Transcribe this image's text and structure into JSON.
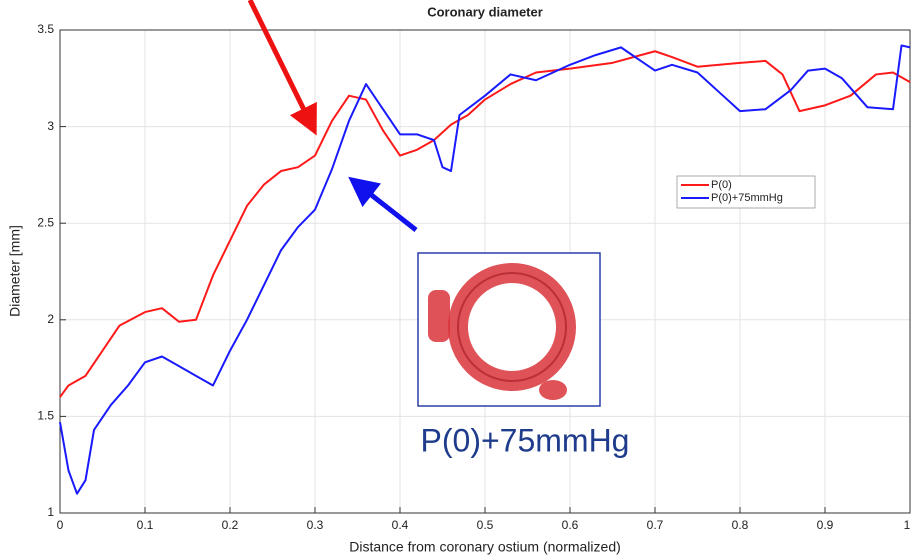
{
  "chart_data": {
    "type": "line",
    "title": "Coronary diameter",
    "x_label": "Distance from coronary ostium (normalized)",
    "y_label": "Diameter [mm]",
    "annotation": "P(0)+75mmHg",
    "xlim": [
      0,
      1
    ],
    "xticks": [
      0,
      0.1,
      0.2,
      0.3,
      0.4,
      0.5,
      0.6,
      0.7,
      0.8,
      0.9,
      1
    ],
    "ylim": [
      1,
      3.5
    ],
    "yticks": [
      1,
      1.5,
      2,
      2.5,
      3,
      3.5
    ],
    "grid": true,
    "legend": "right",
    "series": [
      {
        "name": "P(0)",
        "color": "#ff1a1a",
        "x": [
          0,
          0.01,
          0.03,
          0.05,
          0.07,
          0.1,
          0.12,
          0.14,
          0.16,
          0.18,
          0.2,
          0.22,
          0.24,
          0.26,
          0.28,
          0.3,
          0.32,
          0.34,
          0.36,
          0.38,
          0.4,
          0.42,
          0.44,
          0.46,
          0.48,
          0.5,
          0.53,
          0.56,
          0.6,
          0.65,
          0.7,
          0.72,
          0.75,
          0.8,
          0.83,
          0.85,
          0.87,
          0.9,
          0.93,
          0.96,
          0.98,
          1.0
        ],
        "values": [
          1.6,
          1.66,
          1.71,
          1.84,
          1.97,
          2.04,
          2.06,
          1.99,
          2.0,
          2.23,
          2.41,
          2.59,
          2.7,
          2.77,
          2.79,
          2.85,
          3.03,
          3.16,
          3.14,
          2.98,
          2.85,
          2.88,
          2.93,
          3.01,
          3.06,
          3.14,
          3.22,
          3.28,
          3.3,
          3.33,
          3.39,
          3.36,
          3.31,
          3.33,
          3.34,
          3.27,
          3.08,
          3.11,
          3.16,
          3.27,
          3.28,
          3.23
        ]
      },
      {
        "name": "P(0)+75mmHg",
        "color": "#1a1aff",
        "x": [
          0,
          0.01,
          0.02,
          0.03,
          0.04,
          0.06,
          0.08,
          0.1,
          0.12,
          0.14,
          0.16,
          0.18,
          0.2,
          0.22,
          0.24,
          0.26,
          0.28,
          0.3,
          0.32,
          0.34,
          0.36,
          0.38,
          0.4,
          0.42,
          0.44,
          0.45,
          0.46,
          0.47,
          0.5,
          0.53,
          0.56,
          0.6,
          0.63,
          0.66,
          0.7,
          0.72,
          0.75,
          0.78,
          0.8,
          0.83,
          0.86,
          0.88,
          0.9,
          0.92,
          0.95,
          0.98,
          0.99,
          1.0
        ],
        "values": [
          1.47,
          1.22,
          1.1,
          1.17,
          1.43,
          1.56,
          1.66,
          1.78,
          1.81,
          1.76,
          1.71,
          1.66,
          1.84,
          2.0,
          2.18,
          2.36,
          2.48,
          2.57,
          2.78,
          3.03,
          3.22,
          3.09,
          2.96,
          2.96,
          2.93,
          2.79,
          2.77,
          3.06,
          3.16,
          3.27,
          3.24,
          3.32,
          3.37,
          3.41,
          3.29,
          3.32,
          3.28,
          3.16,
          3.08,
          3.09,
          3.19,
          3.29,
          3.3,
          3.25,
          3.1,
          3.09,
          3.42,
          3.41
        ]
      }
    ]
  }
}
